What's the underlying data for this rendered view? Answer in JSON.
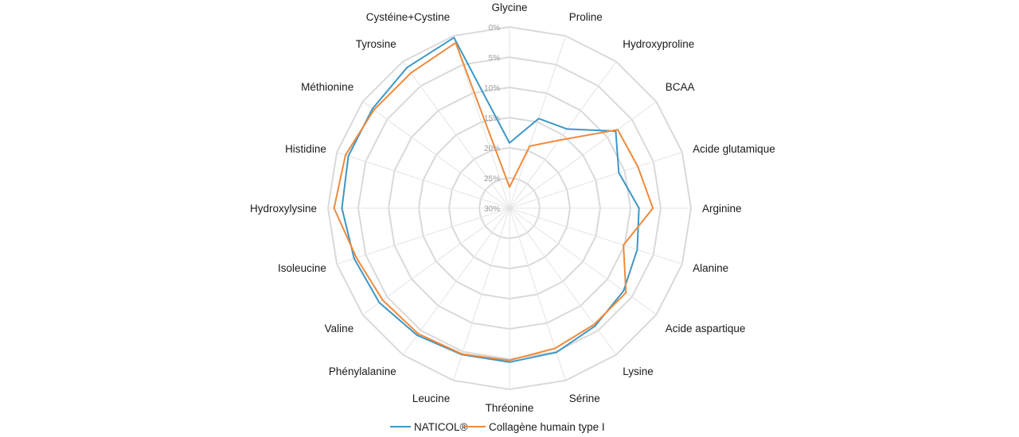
{
  "chart_data": {
    "type": "radar",
    "categories": [
      "Glycine",
      "Proline",
      "Hydroxyproline",
      "BCAA",
      "Acide glutamique",
      "Arginine",
      "Alanine",
      "Acide aspartique",
      "Lysine",
      "Sérine",
      "Thréonine",
      "Leucine",
      "Phénylalanine",
      "Valine",
      "Isoleucine",
      "Hydroxylysine",
      "Histidine",
      "Méthionine",
      "Tyrosine",
      "Cystéine+Cystine"
    ],
    "tick_labels": [
      "0%",
      "5%",
      "10%",
      "15%",
      "20%",
      "25%",
      "30%"
    ],
    "axis_reversed": true,
    "range": [
      0,
      30
    ],
    "grid": true,
    "legend_position": "bottom",
    "series": [
      {
        "name": "NATICOL®",
        "color": "#3d97c5",
        "values": [
          19.2,
          14.4,
          13.8,
          8.3,
          11.0,
          8.6,
          7.8,
          6.7,
          5.9,
          4.9,
          4.5,
          4.5,
          4.0,
          3.4,
          3.0,
          2.3,
          2.0,
          2.0,
          1.2,
          0.3
        ]
      },
      {
        "name": "Collagène humain type I",
        "color": "#ef8a3c",
        "values": [
          26.5,
          19.2,
          16.1,
          7.9,
          7.7,
          6.3,
          10.2,
          6.2,
          6.2,
          5.6,
          4.8,
          4.6,
          4.3,
          4.1,
          3.4,
          1.0,
          1.5,
          2.3,
          2.3,
          1.2
        ]
      }
    ]
  }
}
